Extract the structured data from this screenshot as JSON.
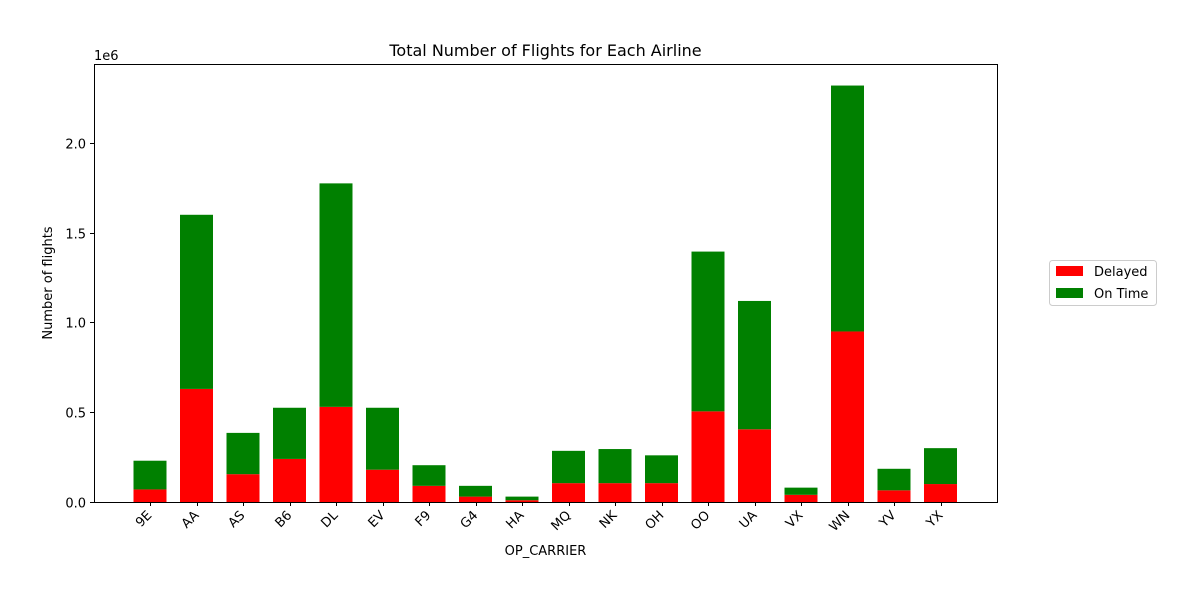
{
  "chart_data": {
    "type": "bar",
    "stacked": true,
    "title": "Total Number of Flights for Each Airline",
    "xlabel": "OP_CARRIER",
    "ylabel": "Number of flights",
    "y_offset_label": "1e6",
    "ylim": [
      0,
      2440000
    ],
    "y_ticks": [
      0,
      500000,
      1000000,
      1500000,
      2000000
    ],
    "y_tick_labels": [
      "0.0",
      "0.5",
      "1.0",
      "1.5",
      "2.0"
    ],
    "categories": [
      "9E",
      "AA",
      "AS",
      "B6",
      "DL",
      "EV",
      "F9",
      "G4",
      "HA",
      "MQ",
      "NK",
      "OH",
      "OO",
      "UA",
      "VX",
      "WN",
      "YV",
      "YX"
    ],
    "series": [
      {
        "name": "Delayed",
        "color": "#ff0000",
        "values": [
          70000,
          630000,
          155000,
          240000,
          530000,
          180000,
          90000,
          30000,
          10000,
          105000,
          105000,
          105000,
          505000,
          405000,
          40000,
          950000,
          65000,
          100000
        ]
      },
      {
        "name": "On Time",
        "color": "#008000",
        "values": [
          160000,
          970000,
          230000,
          285000,
          1245000,
          345000,
          115000,
          60000,
          20000,
          180000,
          190000,
          155000,
          890000,
          715000,
          40000,
          1370000,
          120000,
          200000
        ]
      }
    ],
    "legend_position": "right",
    "grid": false
  }
}
